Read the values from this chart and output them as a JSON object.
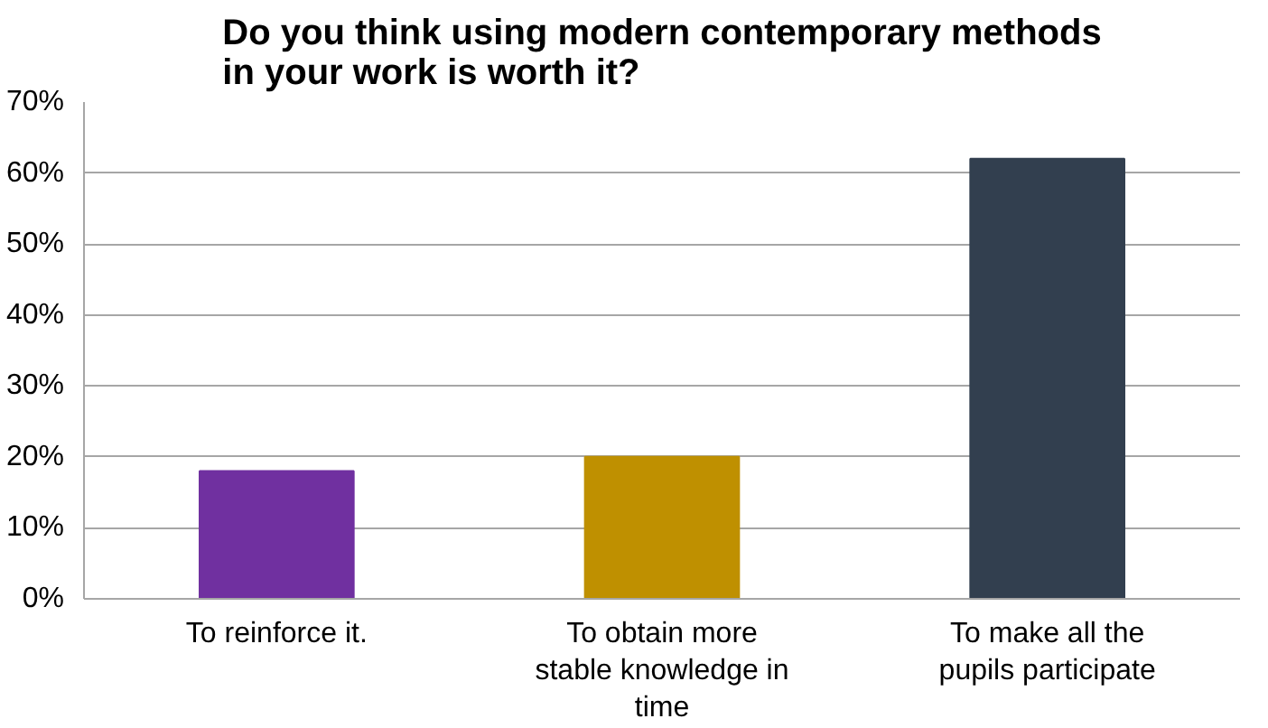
{
  "chart_data": {
    "type": "bar",
    "title": "Do you think using modern contemporary methods in your work is worth it?",
    "categories": [
      "To reinforce it.",
      "To obtain more stable knowledge in time",
      "To make all the pupils participate"
    ],
    "values": [
      18,
      20,
      62
    ],
    "colors": [
      "#7030a0",
      "#bf9000",
      "#323f4f"
    ],
    "ylim": [
      0,
      70
    ],
    "yticks": [
      {
        "value": 0,
        "label": "0%"
      },
      {
        "value": 10,
        "label": "10%"
      },
      {
        "value": 20,
        "label": "20%"
      },
      {
        "value": 30,
        "label": "30%"
      },
      {
        "value": 40,
        "label": "40%"
      },
      {
        "value": 50,
        "label": "50%"
      },
      {
        "value": 60,
        "label": "60%"
      },
      {
        "value": 70,
        "label": "70%"
      }
    ],
    "grid": "y"
  }
}
